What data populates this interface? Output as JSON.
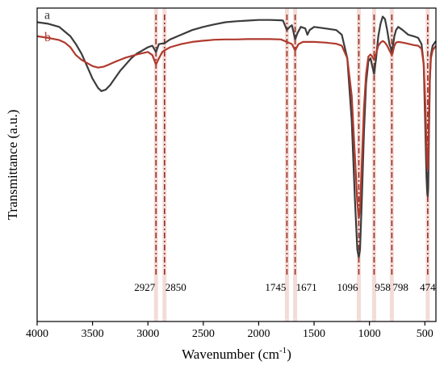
{
  "chart_data": {
    "type": "line",
    "title": "",
    "xlabel": "Wavenumber (cm⁻¹)",
    "ylabel": "Transmittance (a.u.)",
    "xlim": [
      4000,
      400
    ],
    "ylim": [
      0,
      100
    ],
    "x_reversed": true,
    "y_tick_labels": false,
    "grid": false,
    "x_ticks": [
      4000,
      3500,
      3000,
      2500,
      2000,
      1500,
      1000,
      500
    ],
    "series": [
      {
        "name": "a",
        "color": "#3c3c3c",
        "points": [
          [
            4000,
            95.5
          ],
          [
            3900,
            95
          ],
          [
            3800,
            94
          ],
          [
            3750,
            92.5
          ],
          [
            3700,
            91
          ],
          [
            3650,
            88.5
          ],
          [
            3600,
            85.5
          ],
          [
            3550,
            81.5
          ],
          [
            3500,
            77.5
          ],
          [
            3450,
            74.5
          ],
          [
            3420,
            73.5
          ],
          [
            3380,
            74
          ],
          [
            3340,
            75.5
          ],
          [
            3300,
            77.5
          ],
          [
            3250,
            80
          ],
          [
            3200,
            82
          ],
          [
            3150,
            84
          ],
          [
            3100,
            85.5
          ],
          [
            3050,
            86.5
          ],
          [
            3000,
            87.5
          ],
          [
            2960,
            88
          ],
          [
            2927,
            86
          ],
          [
            2900,
            88.5
          ],
          [
            2850,
            88.8
          ],
          [
            2800,
            90
          ],
          [
            2700,
            91.5
          ],
          [
            2600,
            93
          ],
          [
            2500,
            94
          ],
          [
            2400,
            94.8
          ],
          [
            2300,
            95.5
          ],
          [
            2200,
            95.8
          ],
          [
            2100,
            96
          ],
          [
            2000,
            96.2
          ],
          [
            1900,
            96.2
          ],
          [
            1800,
            96.1
          ],
          [
            1780,
            96
          ],
          [
            1745,
            93
          ],
          [
            1720,
            94
          ],
          [
            1700,
            94.5
          ],
          [
            1690,
            93
          ],
          [
            1671,
            90
          ],
          [
            1650,
            92
          ],
          [
            1620,
            94
          ],
          [
            1580,
            93.5
          ],
          [
            1560,
            91.5
          ],
          [
            1540,
            93
          ],
          [
            1500,
            94
          ],
          [
            1400,
            93.5
          ],
          [
            1300,
            93
          ],
          [
            1250,
            91.5
          ],
          [
            1200,
            84
          ],
          [
            1160,
            64
          ],
          [
            1130,
            38
          ],
          [
            1110,
            23
          ],
          [
            1096,
            20.5
          ],
          [
            1085,
            23
          ],
          [
            1070,
            38
          ],
          [
            1050,
            60
          ],
          [
            1030,
            76
          ],
          [
            1010,
            83
          ],
          [
            990,
            84
          ],
          [
            975,
            81.5
          ],
          [
            958,
            79
          ],
          [
            940,
            84
          ],
          [
            920,
            91
          ],
          [
            900,
            95
          ],
          [
            880,
            97.3
          ],
          [
            860,
            96.5
          ],
          [
            840,
            93
          ],
          [
            820,
            88.5
          ],
          [
            805,
            87
          ],
          [
            798,
            86
          ],
          [
            790,
            87.5
          ],
          [
            775,
            91
          ],
          [
            760,
            93
          ],
          [
            740,
            94
          ],
          [
            700,
            93
          ],
          [
            650,
            91.5
          ],
          [
            600,
            91
          ],
          [
            560,
            90.5
          ],
          [
            530,
            88.5
          ],
          [
            510,
            82
          ],
          [
            495,
            60
          ],
          [
            485,
            46
          ],
          [
            478,
            41
          ],
          [
            474,
            40
          ],
          [
            470,
            43
          ],
          [
            462,
            62
          ],
          [
            455,
            77
          ],
          [
            445,
            85
          ],
          [
            430,
            88
          ],
          [
            410,
            89
          ],
          [
            400,
            89.5
          ]
        ]
      },
      {
        "name": "b",
        "color": "#b03a2e",
        "points": [
          [
            4000,
            91
          ],
          [
            3900,
            90.5
          ],
          [
            3800,
            89.8
          ],
          [
            3750,
            89
          ],
          [
            3700,
            87.5
          ],
          [
            3650,
            85
          ],
          [
            3600,
            83.5
          ],
          [
            3550,
            82.5
          ],
          [
            3500,
            81.5
          ],
          [
            3450,
            81
          ],
          [
            3400,
            81.3
          ],
          [
            3350,
            82
          ],
          [
            3300,
            82.8
          ],
          [
            3250,
            83.5
          ],
          [
            3200,
            84.2
          ],
          [
            3100,
            85.2
          ],
          [
            3000,
            86
          ],
          [
            2960,
            85
          ],
          [
            2927,
            82
          ],
          [
            2900,
            84
          ],
          [
            2870,
            86
          ],
          [
            2850,
            86.5
          ],
          [
            2800,
            87.5
          ],
          [
            2700,
            88.5
          ],
          [
            2600,
            89.2
          ],
          [
            2500,
            89.6
          ],
          [
            2400,
            89.9
          ],
          [
            2300,
            90
          ],
          [
            2200,
            90
          ],
          [
            2100,
            90.1
          ],
          [
            2000,
            90.1
          ],
          [
            1900,
            90.1
          ],
          [
            1800,
            90
          ],
          [
            1745,
            89.2
          ],
          [
            1700,
            88.5
          ],
          [
            1671,
            86.5
          ],
          [
            1640,
            88.5
          ],
          [
            1600,
            89.2
          ],
          [
            1500,
            89.2
          ],
          [
            1400,
            89
          ],
          [
            1300,
            88.6
          ],
          [
            1250,
            88
          ],
          [
            1200,
            84
          ],
          [
            1160,
            72
          ],
          [
            1130,
            52
          ],
          [
            1110,
            38
          ],
          [
            1096,
            33
          ],
          [
            1085,
            36
          ],
          [
            1070,
            50
          ],
          [
            1050,
            68
          ],
          [
            1030,
            79
          ],
          [
            1010,
            84.5
          ],
          [
            990,
            85.2
          ],
          [
            975,
            84.5
          ],
          [
            958,
            83.5
          ],
          [
            940,
            85.5
          ],
          [
            920,
            88
          ],
          [
            900,
            89
          ],
          [
            880,
            89.5
          ],
          [
            860,
            89
          ],
          [
            840,
            88
          ],
          [
            820,
            86.5
          ],
          [
            805,
            85.5
          ],
          [
            798,
            85
          ],
          [
            790,
            85.8
          ],
          [
            775,
            88
          ],
          [
            760,
            89
          ],
          [
            740,
            89.2
          ],
          [
            700,
            89
          ],
          [
            650,
            88.6
          ],
          [
            600,
            88.2
          ],
          [
            560,
            88
          ],
          [
            530,
            87
          ],
          [
            510,
            82
          ],
          [
            495,
            68
          ],
          [
            485,
            56
          ],
          [
            478,
            50
          ],
          [
            474,
            48.5
          ],
          [
            470,
            51
          ],
          [
            462,
            66
          ],
          [
            455,
            78
          ],
          [
            445,
            84
          ],
          [
            430,
            86.5
          ],
          [
            410,
            87.5
          ],
          [
            400,
            88
          ]
        ]
      }
    ],
    "annotations": [
      {
        "x": 2927,
        "label": "2927"
      },
      {
        "x": 2850,
        "label": "2850"
      },
      {
        "x": 1745,
        "label": "1745"
      },
      {
        "x": 1671,
        "label": "1671"
      },
      {
        "x": 1096,
        "label": "1096"
      },
      {
        "x": 958,
        "label": "958"
      },
      {
        "x": 798,
        "label": "798"
      },
      {
        "x": 474,
        "label": "474"
      }
    ],
    "annotation_line_color": "#9b2d20"
  }
}
